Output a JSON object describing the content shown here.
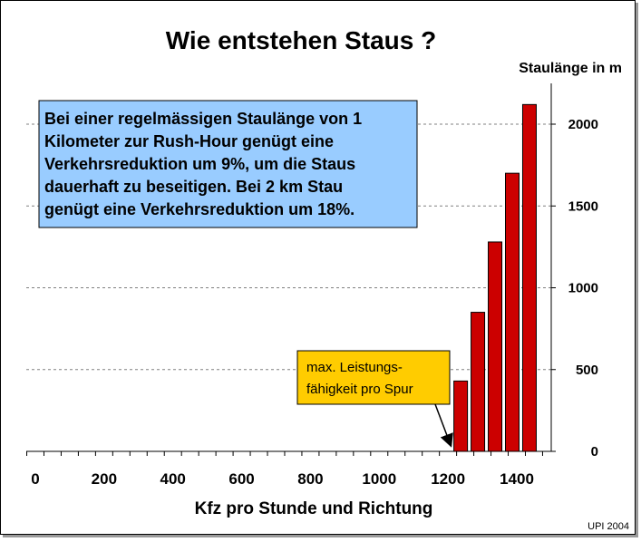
{
  "chart_data": {
    "type": "bar",
    "title": "Wie entstehen Staus ?",
    "ylabel": "Staulänge in m",
    "xlabel": "Kfz pro Stunde und Richtung",
    "xlim": [
      0,
      1450
    ],
    "ylim": [
      0,
      2200
    ],
    "x_ticks": [
      0,
      200,
      400,
      600,
      800,
      1000,
      1200,
      1400
    ],
    "y_ticks": [
      0,
      500,
      1000,
      1500,
      2000
    ],
    "y_axis_side": "right",
    "grid": "horizontal dashed",
    "x": [
      1250,
      1300,
      1350,
      1400,
      1450
    ],
    "values": [
      430,
      850,
      1280,
      1700,
      2120
    ],
    "bar_color": "#cc0000",
    "annotations": [
      {
        "text_lines": [
          "Bei einer regelmässigen Staulänge von 1",
          "Kilometer zur Rush-Hour genügt eine",
          "Verkehrsreduktion um 9%, um die Staus",
          "dauerhaft zu beseitigen. Bei 2 km Stau",
          "genügt eine Verkehrsreduktion um 18%."
        ],
        "background": "#99ccff"
      },
      {
        "text_lines": [
          "max. Leistungs-",
          "fähigkeit pro Spur"
        ],
        "background": "#ffcc00",
        "points_to_x": 1200
      }
    ],
    "credit": "UPI 2004"
  }
}
